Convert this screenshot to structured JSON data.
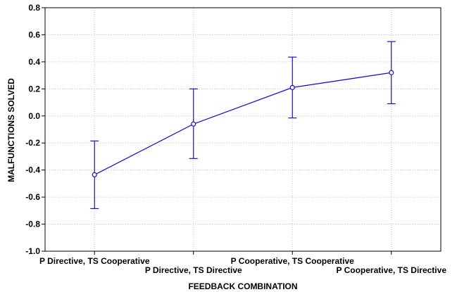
{
  "chart_data": {
    "type": "line",
    "title": "",
    "xlabel": "FEEDBACK COMBINATION",
    "ylabel": "MALFUNCTIONS SOLVED",
    "ylim": [
      -1.0,
      0.8
    ],
    "ytick_step": 0.2,
    "yticks": [
      "-1.0",
      "-0.8",
      "-0.6",
      "-0.4",
      "-0.2",
      "0.0",
      "0.2",
      "0.4",
      "0.6",
      "0.8"
    ],
    "categories": [
      "P Directive, TS Cooperative",
      "P Directive, TS Directive",
      "P Cooperative, TS Cooperative",
      "P Cooperative, TS Directive"
    ],
    "category_label_rows": [
      "upper",
      "lower",
      "upper",
      "lower"
    ],
    "series": [
      {
        "values": [
          -0.435,
          -0.06,
          0.21,
          0.32
        ],
        "error_lower": [
          -0.685,
          -0.315,
          -0.015,
          0.09
        ],
        "error_upper": [
          -0.185,
          0.2,
          0.435,
          0.55
        ]
      }
    ],
    "grid": true,
    "grid_style": "dotted",
    "legend": "none",
    "line_color": "#1414c8",
    "grid_color": "#c8c8c8"
  }
}
